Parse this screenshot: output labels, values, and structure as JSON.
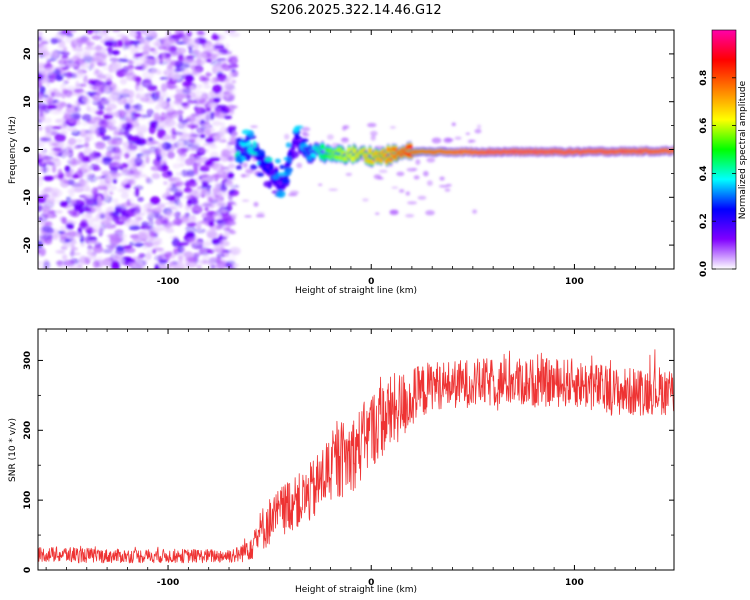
{
  "figure_title": "S206.2025.322.14.46.G12",
  "chart_data": [
    {
      "type": "heatmap",
      "title": "S206.2025.322.14.46.G12",
      "xlabel": "Height of straight line (km)",
      "ylabel": "Frequency (Hz)",
      "xlim": [
        -164,
        149
      ],
      "ylim": [
        -25,
        25
      ],
      "xticks": [
        -100,
        0,
        100
      ],
      "yticks": [
        -20,
        -10,
        0,
        10,
        20
      ],
      "colorbar": {
        "label": "Normalized spectral amplitude",
        "range": [
          0,
          1
        ],
        "ticks": [
          0.0,
          0.2,
          0.4,
          0.6,
          0.8
        ],
        "tick_labels": [
          "0.0",
          "0.2",
          "0.4",
          "0.6",
          "0.8"
        ],
        "colormap": [
          "#ffffff",
          "#8000ff",
          "#0000ff",
          "#00ffff",
          "#00ff00",
          "#ffff00",
          "#ff8000",
          "#ff0000",
          "#ff00aa"
        ]
      },
      "noise_region_x": [
        -164,
        -67
      ],
      "noise_amplitude_range": [
        0.02,
        0.2
      ],
      "signal_ridge": [
        {
          "x": -66,
          "freq": -2.3,
          "amp": 0.45
        },
        {
          "x": -62,
          "freq": 0.5,
          "amp": 0.3
        },
        {
          "x": -56,
          "freq": -1.5,
          "amp": 0.25
        },
        {
          "x": -50,
          "freq": -4.0,
          "amp": 0.25
        },
        {
          "x": -44,
          "freq": -7.5,
          "amp": 0.2
        },
        {
          "x": -40,
          "freq": -2.0,
          "amp": 0.22
        },
        {
          "x": -36,
          "freq": 2.0,
          "amp": 0.18
        },
        {
          "x": -32,
          "freq": -1.0,
          "amp": 0.3
        },
        {
          "x": -26,
          "freq": 0.0,
          "amp": 0.42
        },
        {
          "x": -20,
          "freq": -1.5,
          "amp": 0.55
        },
        {
          "x": -14,
          "freq": -1.0,
          "amp": 0.6
        },
        {
          "x": -6,
          "freq": -1.0,
          "amp": 0.65
        },
        {
          "x": 4,
          "freq": -1.5,
          "amp": 0.7
        },
        {
          "x": 20,
          "freq": -0.5,
          "amp": 0.85
        },
        {
          "x": 60,
          "freq": -0.5,
          "amp": 0.97
        },
        {
          "x": 100,
          "freq": -0.5,
          "amp": 0.97
        },
        {
          "x": 149,
          "freq": -0.3,
          "amp": 0.95
        }
      ]
    },
    {
      "type": "line",
      "xlabel": "Height of straight line (km)",
      "ylabel": "SNR (10 * v/v)",
      "xlim": [
        -164,
        149
      ],
      "ylim": [
        0,
        345
      ],
      "xticks": [
        -100,
        0,
        100
      ],
      "yticks": [
        0,
        100,
        200,
        300
      ],
      "color": "#ee3333",
      "series": [
        {
          "name": "SNR",
          "x": [
            -164,
            -150,
            -130,
            -110,
            -90,
            -75,
            -65,
            -58,
            -52,
            -46,
            -40,
            -34,
            -28,
            -22,
            -16,
            -10,
            -5,
            0,
            5,
            10,
            15,
            20,
            25,
            30,
            40,
            50,
            60,
            70,
            80,
            90,
            100,
            110,
            120,
            130,
            140,
            149
          ],
          "mean": [
            22,
            22,
            20,
            20,
            20,
            20,
            22,
            40,
            65,
            80,
            95,
            100,
            115,
            140,
            155,
            165,
            180,
            200,
            215,
            225,
            235,
            245,
            255,
            265,
            265,
            268,
            268,
            270,
            268,
            268,
            268,
            262,
            255,
            255,
            258,
            255
          ],
          "spread": [
            10,
            12,
            10,
            10,
            10,
            10,
            12,
            25,
            35,
            35,
            40,
            40,
            45,
            50,
            55,
            55,
            55,
            55,
            55,
            55,
            50,
            45,
            40,
            35,
            35,
            35,
            35,
            35,
            35,
            35,
            35,
            35,
            35,
            35,
            35,
            35
          ]
        }
      ]
    }
  ]
}
